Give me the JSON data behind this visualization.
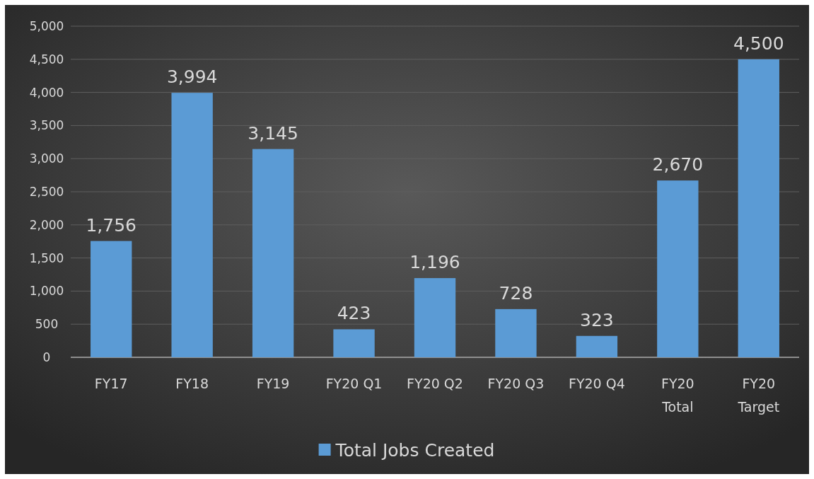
{
  "chart_data": {
    "type": "bar",
    "categories": [
      "FY17",
      "FY18",
      "FY19",
      "FY20 Q1",
      "FY20 Q2",
      "FY20 Q3",
      "FY20 Q4",
      "FY20\nTotal",
      "FY20\nTarget"
    ],
    "series": [
      {
        "name": "Total Jobs Created",
        "color": "#5b9bd5",
        "values": [
          1756,
          3994,
          3145,
          423,
          1196,
          728,
          323,
          2670,
          4500
        ],
        "value_labels": [
          "1,756",
          "3,994",
          "3,145",
          "423",
          "1,196",
          "728",
          "323",
          "2,670",
          "4,500"
        ]
      }
    ],
    "ylim": [
      0,
      5000
    ],
    "yticks": [
      {
        "value": 0,
        "label": "0"
      },
      {
        "value": 500,
        "label": "500"
      },
      {
        "value": 1000,
        "label": "1,000"
      },
      {
        "value": 1500,
        "label": "1,500"
      },
      {
        "value": 2000,
        "label": "2,000"
      },
      {
        "value": 2500,
        "label": "2,500"
      },
      {
        "value": 3000,
        "label": "3,000"
      },
      {
        "value": 3500,
        "label": "3,500"
      },
      {
        "value": 4000,
        "label": "4,000"
      },
      {
        "value": 4500,
        "label": "4,500"
      },
      {
        "value": 5000,
        "label": "5,000"
      }
    ],
    "grid": "y",
    "legend": "bottom"
  }
}
